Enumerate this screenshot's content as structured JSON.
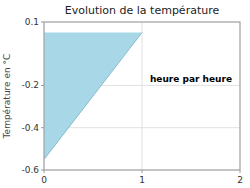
{
  "chart_data": {
    "type": "area",
    "title": "Evolution de la température",
    "ylabel": "Température en °C",
    "series": [
      {
        "type": "area",
        "x": [
          0,
          0,
          1
        ],
        "values": [
          0.05,
          -0.55,
          0.05
        ],
        "color": "#a8d8e8"
      },
      {
        "type": "line",
        "x": [
          0,
          1
        ],
        "values": [
          -0.55,
          0.05
        ],
        "color": "#88bbcc"
      }
    ],
    "annotations": [
      {
        "text": "heure par heure",
        "x": 1.5,
        "y": -0.17
      }
    ],
    "xlim": [
      0,
      2
    ],
    "ylim": [
      -0.6,
      0.1
    ],
    "xticks": [
      0,
      1,
      2
    ],
    "yticks": [
      0.1,
      -0.2,
      -0.4,
      -0.6
    ],
    "grid": true
  }
}
